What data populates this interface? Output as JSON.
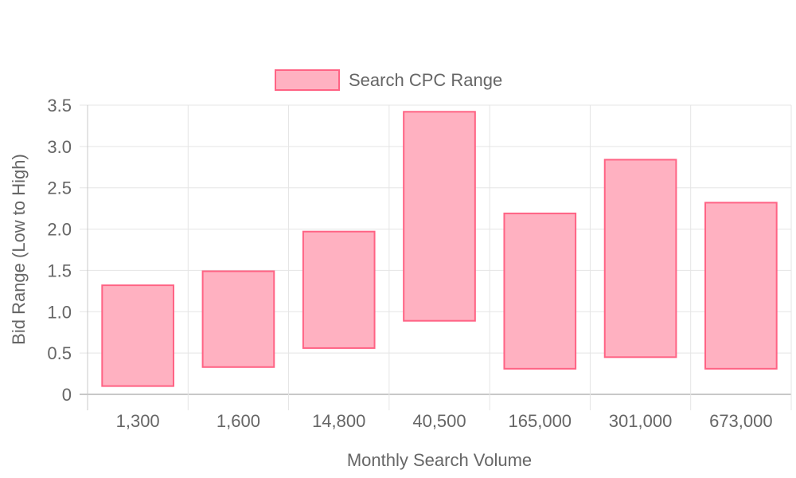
{
  "chart_data": {
    "type": "bar",
    "subtype": "floating-range",
    "title": "",
    "xlabel": "Monthly Search Volume",
    "ylabel": "Bid Range (Low to High)",
    "categories": [
      "1,300",
      "1,600",
      "14,800",
      "40,500",
      "165,000",
      "301,000",
      "673,000"
    ],
    "series": [
      {
        "name": "Search CPC Range",
        "low": [
          0.1,
          0.33,
          0.56,
          0.89,
          0.31,
          0.45,
          0.31
        ],
        "high": [
          1.32,
          1.49,
          1.97,
          3.42,
          2.19,
          2.84,
          2.32
        ]
      }
    ],
    "ylim": [
      0,
      3.5
    ],
    "yticks": [
      0,
      0.5,
      1.0,
      1.5,
      2.0,
      2.5,
      3.0,
      3.5
    ],
    "ytick_labels": [
      "0",
      "0.5",
      "1.0",
      "1.5",
      "2.0",
      "2.5",
      "3.0",
      "3.5"
    ],
    "grid": true,
    "legend_position": "top-center",
    "colors": {
      "bar_fill": "#ffb1c1",
      "bar_stroke": "#ff6384",
      "grid": "#e5e5e5",
      "axis": "#c8c8c8",
      "text": "#666666"
    }
  }
}
